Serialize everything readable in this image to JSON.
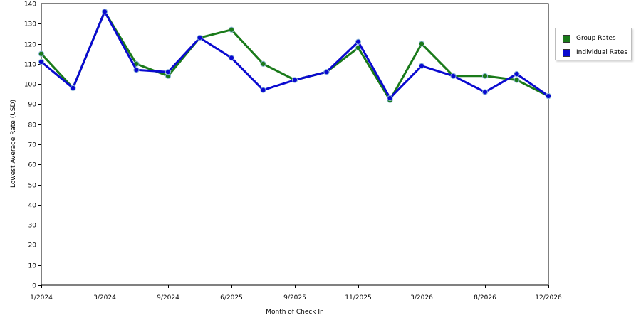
{
  "chart_data": {
    "type": "line",
    "title": "",
    "xlabel": "Month of Check In",
    "ylabel": "Lowest Average Rate (USD)",
    "ylim": [
      0,
      140
    ],
    "y_ticks": [
      0,
      10,
      20,
      30,
      40,
      50,
      60,
      70,
      80,
      90,
      100,
      110,
      120,
      130,
      140
    ],
    "x_tick_labels": [
      "1/2024",
      "3/2024",
      "9/2024",
      "6/2025",
      "9/2025",
      "11/2025",
      "3/2026",
      "8/2026",
      "12/2026"
    ],
    "grid": "horizontal dashed",
    "legend_position": "right",
    "series": [
      {
        "name": "Group Rates",
        "color": "#1a7a1a",
        "values": [
          115,
          98,
          136,
          110,
          104,
          123,
          127,
          110,
          102,
          106,
          118,
          92,
          120,
          104,
          104,
          102,
          94
        ]
      },
      {
        "name": "Individual Rates",
        "color": "#0a0ad0",
        "values": [
          111,
          98,
          136,
          107,
          106,
          123,
          113,
          97,
          102,
          106,
          121,
          93,
          109,
          104,
          96,
          105,
          94
        ]
      }
    ]
  }
}
